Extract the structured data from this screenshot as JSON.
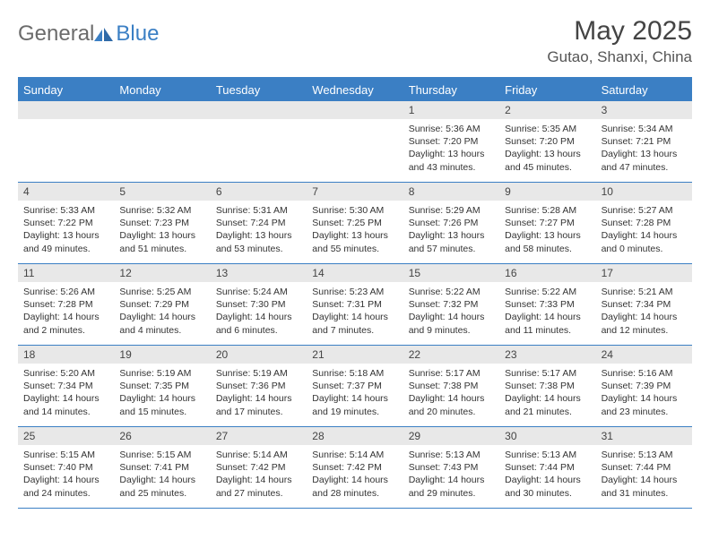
{
  "brand": {
    "part1": "General",
    "part2": "Blue"
  },
  "title": "May 2025",
  "location": "Gutao, Shanxi, China",
  "colors": {
    "accent": "#3b7fc4",
    "date_bar_bg": "#e8e8e8",
    "text": "#333333",
    "header_text": "#ffffff"
  },
  "day_names": [
    "Sunday",
    "Monday",
    "Tuesday",
    "Wednesday",
    "Thursday",
    "Friday",
    "Saturday"
  ],
  "weeks": [
    [
      {
        "empty": true
      },
      {
        "empty": true
      },
      {
        "empty": true
      },
      {
        "empty": true
      },
      {
        "date": "1",
        "sunrise": "Sunrise: 5:36 AM",
        "sunset": "Sunset: 7:20 PM",
        "daylight1": "Daylight: 13 hours",
        "daylight2": "and 43 minutes."
      },
      {
        "date": "2",
        "sunrise": "Sunrise: 5:35 AM",
        "sunset": "Sunset: 7:20 PM",
        "daylight1": "Daylight: 13 hours",
        "daylight2": "and 45 minutes."
      },
      {
        "date": "3",
        "sunrise": "Sunrise: 5:34 AM",
        "sunset": "Sunset: 7:21 PM",
        "daylight1": "Daylight: 13 hours",
        "daylight2": "and 47 minutes."
      }
    ],
    [
      {
        "date": "4",
        "sunrise": "Sunrise: 5:33 AM",
        "sunset": "Sunset: 7:22 PM",
        "daylight1": "Daylight: 13 hours",
        "daylight2": "and 49 minutes."
      },
      {
        "date": "5",
        "sunrise": "Sunrise: 5:32 AM",
        "sunset": "Sunset: 7:23 PM",
        "daylight1": "Daylight: 13 hours",
        "daylight2": "and 51 minutes."
      },
      {
        "date": "6",
        "sunrise": "Sunrise: 5:31 AM",
        "sunset": "Sunset: 7:24 PM",
        "daylight1": "Daylight: 13 hours",
        "daylight2": "and 53 minutes."
      },
      {
        "date": "7",
        "sunrise": "Sunrise: 5:30 AM",
        "sunset": "Sunset: 7:25 PM",
        "daylight1": "Daylight: 13 hours",
        "daylight2": "and 55 minutes."
      },
      {
        "date": "8",
        "sunrise": "Sunrise: 5:29 AM",
        "sunset": "Sunset: 7:26 PM",
        "daylight1": "Daylight: 13 hours",
        "daylight2": "and 57 minutes."
      },
      {
        "date": "9",
        "sunrise": "Sunrise: 5:28 AM",
        "sunset": "Sunset: 7:27 PM",
        "daylight1": "Daylight: 13 hours",
        "daylight2": "and 58 minutes."
      },
      {
        "date": "10",
        "sunrise": "Sunrise: 5:27 AM",
        "sunset": "Sunset: 7:28 PM",
        "daylight1": "Daylight: 14 hours",
        "daylight2": "and 0 minutes."
      }
    ],
    [
      {
        "date": "11",
        "sunrise": "Sunrise: 5:26 AM",
        "sunset": "Sunset: 7:28 PM",
        "daylight1": "Daylight: 14 hours",
        "daylight2": "and 2 minutes."
      },
      {
        "date": "12",
        "sunrise": "Sunrise: 5:25 AM",
        "sunset": "Sunset: 7:29 PM",
        "daylight1": "Daylight: 14 hours",
        "daylight2": "and 4 minutes."
      },
      {
        "date": "13",
        "sunrise": "Sunrise: 5:24 AM",
        "sunset": "Sunset: 7:30 PM",
        "daylight1": "Daylight: 14 hours",
        "daylight2": "and 6 minutes."
      },
      {
        "date": "14",
        "sunrise": "Sunrise: 5:23 AM",
        "sunset": "Sunset: 7:31 PM",
        "daylight1": "Daylight: 14 hours",
        "daylight2": "and 7 minutes."
      },
      {
        "date": "15",
        "sunrise": "Sunrise: 5:22 AM",
        "sunset": "Sunset: 7:32 PM",
        "daylight1": "Daylight: 14 hours",
        "daylight2": "and 9 minutes."
      },
      {
        "date": "16",
        "sunrise": "Sunrise: 5:22 AM",
        "sunset": "Sunset: 7:33 PM",
        "daylight1": "Daylight: 14 hours",
        "daylight2": "and 11 minutes."
      },
      {
        "date": "17",
        "sunrise": "Sunrise: 5:21 AM",
        "sunset": "Sunset: 7:34 PM",
        "daylight1": "Daylight: 14 hours",
        "daylight2": "and 12 minutes."
      }
    ],
    [
      {
        "date": "18",
        "sunrise": "Sunrise: 5:20 AM",
        "sunset": "Sunset: 7:34 PM",
        "daylight1": "Daylight: 14 hours",
        "daylight2": "and 14 minutes."
      },
      {
        "date": "19",
        "sunrise": "Sunrise: 5:19 AM",
        "sunset": "Sunset: 7:35 PM",
        "daylight1": "Daylight: 14 hours",
        "daylight2": "and 15 minutes."
      },
      {
        "date": "20",
        "sunrise": "Sunrise: 5:19 AM",
        "sunset": "Sunset: 7:36 PM",
        "daylight1": "Daylight: 14 hours",
        "daylight2": "and 17 minutes."
      },
      {
        "date": "21",
        "sunrise": "Sunrise: 5:18 AM",
        "sunset": "Sunset: 7:37 PM",
        "daylight1": "Daylight: 14 hours",
        "daylight2": "and 19 minutes."
      },
      {
        "date": "22",
        "sunrise": "Sunrise: 5:17 AM",
        "sunset": "Sunset: 7:38 PM",
        "daylight1": "Daylight: 14 hours",
        "daylight2": "and 20 minutes."
      },
      {
        "date": "23",
        "sunrise": "Sunrise: 5:17 AM",
        "sunset": "Sunset: 7:38 PM",
        "daylight1": "Daylight: 14 hours",
        "daylight2": "and 21 minutes."
      },
      {
        "date": "24",
        "sunrise": "Sunrise: 5:16 AM",
        "sunset": "Sunset: 7:39 PM",
        "daylight1": "Daylight: 14 hours",
        "daylight2": "and 23 minutes."
      }
    ],
    [
      {
        "date": "25",
        "sunrise": "Sunrise: 5:15 AM",
        "sunset": "Sunset: 7:40 PM",
        "daylight1": "Daylight: 14 hours",
        "daylight2": "and 24 minutes."
      },
      {
        "date": "26",
        "sunrise": "Sunrise: 5:15 AM",
        "sunset": "Sunset: 7:41 PM",
        "daylight1": "Daylight: 14 hours",
        "daylight2": "and 25 minutes."
      },
      {
        "date": "27",
        "sunrise": "Sunrise: 5:14 AM",
        "sunset": "Sunset: 7:42 PM",
        "daylight1": "Daylight: 14 hours",
        "daylight2": "and 27 minutes."
      },
      {
        "date": "28",
        "sunrise": "Sunrise: 5:14 AM",
        "sunset": "Sunset: 7:42 PM",
        "daylight1": "Daylight: 14 hours",
        "daylight2": "and 28 minutes."
      },
      {
        "date": "29",
        "sunrise": "Sunrise: 5:13 AM",
        "sunset": "Sunset: 7:43 PM",
        "daylight1": "Daylight: 14 hours",
        "daylight2": "and 29 minutes."
      },
      {
        "date": "30",
        "sunrise": "Sunrise: 5:13 AM",
        "sunset": "Sunset: 7:44 PM",
        "daylight1": "Daylight: 14 hours",
        "daylight2": "and 30 minutes."
      },
      {
        "date": "31",
        "sunrise": "Sunrise: 5:13 AM",
        "sunset": "Sunset: 7:44 PM",
        "daylight1": "Daylight: 14 hours",
        "daylight2": "and 31 minutes."
      }
    ]
  ]
}
